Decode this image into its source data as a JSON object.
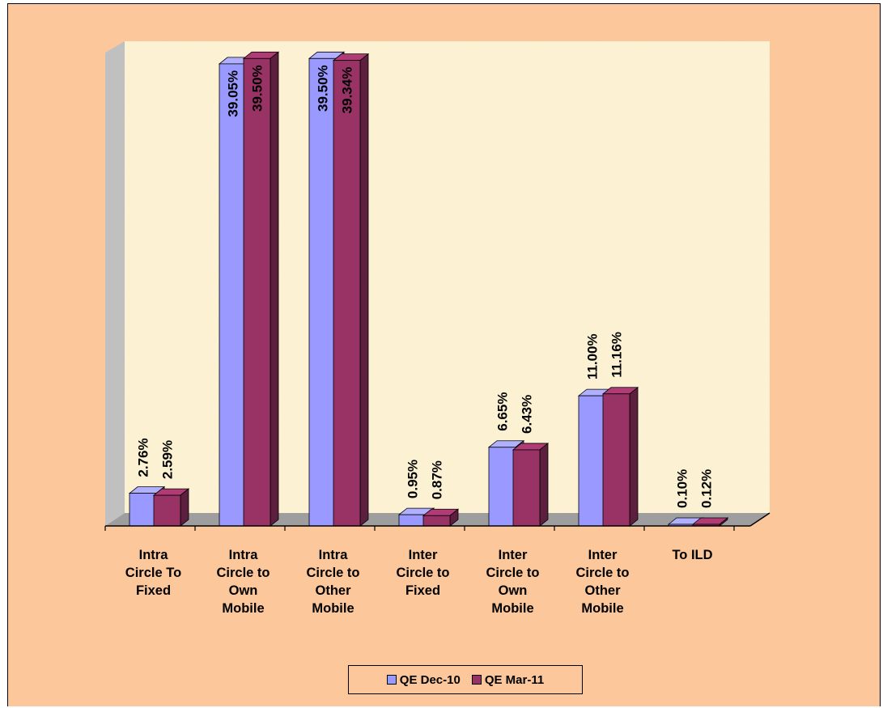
{
  "chart_data": {
    "type": "bar",
    "title": "",
    "xlabel": "",
    "ylabel": "",
    "ylim": [
      0,
      40
    ],
    "grid": false,
    "legend_position": "bottom",
    "categories": [
      [
        "Intra",
        "Circle To",
        "Fixed"
      ],
      [
        "Intra",
        "Circle to",
        "Own",
        "Mobile"
      ],
      [
        "Intra",
        "Circle to",
        "Other",
        "Mobile"
      ],
      [
        "Inter",
        "Circle to",
        "Fixed"
      ],
      [
        "Inter",
        "Circle to",
        "Own",
        "Mobile"
      ],
      [
        "Inter",
        "Circle to",
        "Other",
        "Mobile"
      ],
      [
        "To ILD"
      ]
    ],
    "series": [
      {
        "name": "QE Dec-10",
        "color": "#9999ff",
        "values": [
          2.76,
          39.05,
          39.5,
          0.95,
          6.65,
          11.0,
          0.1
        ],
        "labels": [
          "2.76%",
          "39.05%",
          "39.50%",
          "0.95%",
          "6.65%",
          "11.00%",
          "0.10%"
        ]
      },
      {
        "name": "QE Mar-11",
        "color": "#993366",
        "values": [
          2.59,
          39.5,
          39.34,
          0.87,
          6.43,
          11.16,
          0.12
        ],
        "labels": [
          "2.59%",
          "39.50%",
          "39.34%",
          "0.87%",
          "6.43%",
          "11.16%",
          "0.12%"
        ]
      }
    ]
  }
}
